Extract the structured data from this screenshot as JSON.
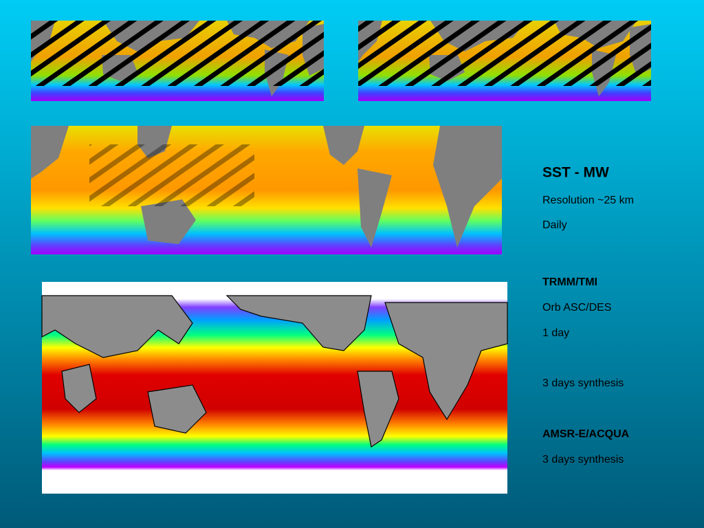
{
  "sidebar": {
    "title": "SST -  MW",
    "resolution": "Resolution ~25 km",
    "frequency": "Daily",
    "sections": [
      {
        "heading": "TRMM/TMI",
        "lines": [
          "Orb ASC/DES",
          "1 day",
          "3 days synthesis"
        ]
      },
      {
        "heading": "AMSR-E/ACQUA",
        "lines": [
          "3 days synthesis"
        ]
      }
    ]
  }
}
